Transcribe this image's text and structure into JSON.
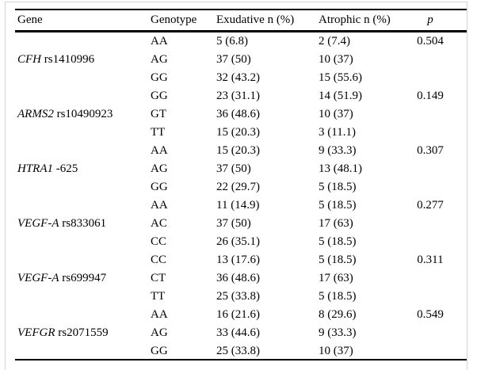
{
  "table": {
    "columns": [
      {
        "key": "gene",
        "label": "Gene"
      },
      {
        "key": "genotype",
        "label": "Genotype"
      },
      {
        "key": "exudative",
        "label": "Exudative n (%)"
      },
      {
        "key": "atrophic",
        "label": "Atrophic n (%)"
      },
      {
        "key": "p",
        "label": "p"
      }
    ],
    "groups": [
      {
        "gene_italic": "CFH",
        "gene_roman": " rs1410996",
        "p": "0.504",
        "rows": [
          {
            "genotype": "AA",
            "exudative": "5 (6.8)",
            "atrophic": "2 (7.4)"
          },
          {
            "genotype": "AG",
            "exudative": "37 (50)",
            "atrophic": "10 (37)"
          },
          {
            "genotype": "GG",
            "exudative": "32 (43.2)",
            "atrophic": "15 (55.6)"
          }
        ]
      },
      {
        "gene_italic": "ARMS2",
        "gene_roman": " rs10490923",
        "p": "0.149",
        "rows": [
          {
            "genotype": "GG",
            "exudative": "23 (31.1)",
            "atrophic": "14 (51.9)"
          },
          {
            "genotype": "GT",
            "exudative": "36 (48.6)",
            "atrophic": "10 (37)"
          },
          {
            "genotype": "TT",
            "exudative": "15 (20.3)",
            "atrophic": "3 (11.1)"
          }
        ]
      },
      {
        "gene_italic": "HTRA1",
        "gene_roman": " -625",
        "p": "0.307",
        "rows": [
          {
            "genotype": "AA",
            "exudative": "15 (20.3)",
            "atrophic": "9 (33.3)"
          },
          {
            "genotype": "AG",
            "exudative": "37 (50)",
            "atrophic": "13 (48.1)"
          },
          {
            "genotype": "GG",
            "exudative": "22 (29.7)",
            "atrophic": "5 (18.5)"
          }
        ]
      },
      {
        "gene_italic": "VEGF-A",
        "gene_roman": " rs833061",
        "p": "0.277",
        "rows": [
          {
            "genotype": "AA",
            "exudative": "11 (14.9)",
            "atrophic": "5 (18.5)"
          },
          {
            "genotype": "AC",
            "exudative": "37 (50)",
            "atrophic": "17 (63)"
          },
          {
            "genotype": "CC",
            "exudative": "26 (35.1)",
            "atrophic": "5 (18.5)"
          }
        ]
      },
      {
        "gene_italic": "VEGF-A",
        "gene_roman": " rs699947",
        "p": "0.311",
        "rows": [
          {
            "genotype": "CC",
            "exudative": "13 (17.6)",
            "atrophic": "5 (18.5)"
          },
          {
            "genotype": "CT",
            "exudative": "36 (48.6)",
            "atrophic": "17 (63)"
          },
          {
            "genotype": "TT",
            "exudative": "25 (33.8)",
            "atrophic": "5 (18.5)"
          }
        ]
      },
      {
        "gene_italic": "VEFGR",
        "gene_roman": " rs2071559",
        "p": "0.549",
        "rows": [
          {
            "genotype": "AA",
            "exudative": "16 (21.6)",
            "atrophic": "8 (29.6)"
          },
          {
            "genotype": "AG",
            "exudative": "33 (44.6)",
            "atrophic": "9 (33.3)"
          },
          {
            "genotype": "GG",
            "exudative": "25 (33.8)",
            "atrophic": "10 (37)"
          }
        ]
      }
    ]
  },
  "colors": {
    "rule": "#000000",
    "frame": "#d4d4d4",
    "text": "#000000",
    "background": "#ffffff"
  }
}
